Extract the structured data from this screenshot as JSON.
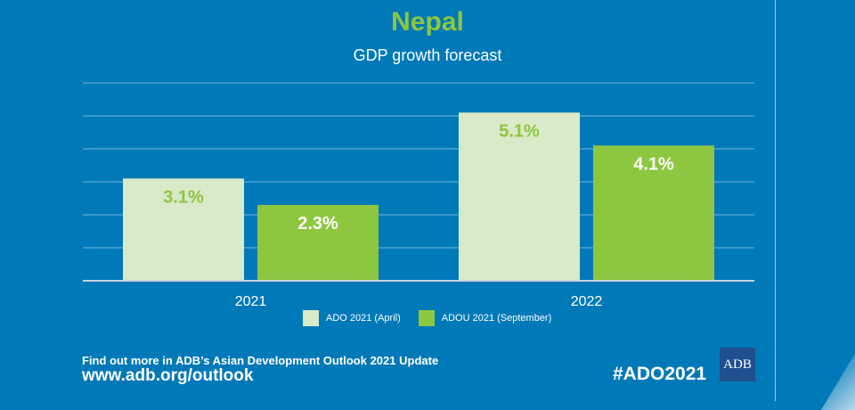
{
  "chart_data": {
    "type": "bar",
    "title": "Nepal",
    "subtitle": "GDP growth forecast",
    "categories": [
      "2021",
      "2022"
    ],
    "series": [
      {
        "name": "ADO 2021 (April)",
        "values": [
          3.1,
          5.1
        ],
        "labels": [
          "3.1%",
          "5.1%"
        ],
        "color": "#d9eac8",
        "label_color": "#8dc63f"
      },
      {
        "name": "ADOU 2021 (September)",
        "values": [
          2.3,
          4.1
        ],
        "labels": [
          "2.3%",
          "4.1%"
        ],
        "color": "#8dc63f",
        "label_color": "#ffffff"
      }
    ],
    "ylim": [
      0,
      6
    ],
    "grid": true,
    "legend": "bottom-center"
  },
  "footer": {
    "find_text": "Find out more in ADB’s Asian Development Outlook 2021 Update",
    "url": "www.adb.org/outlook",
    "hashtag": "#ADO2021",
    "logo": "ADB"
  },
  "colors": {
    "background": "#0079b8",
    "accent": "#8dc63f"
  }
}
